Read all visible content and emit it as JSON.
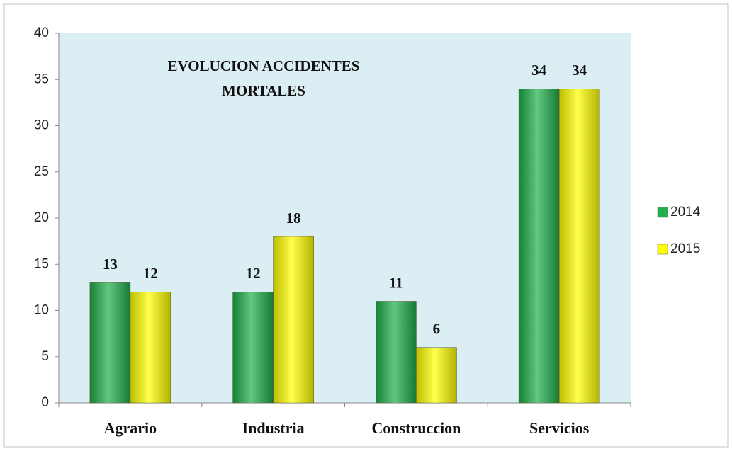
{
  "chart_data": {
    "type": "bar",
    "title": "EVOLUCION ACCIDENTES MORTALES",
    "categories": [
      "Agrario",
      "Industria",
      "Construccion",
      "Servicios"
    ],
    "series": [
      {
        "name": "2014",
        "color": "#1fb04a",
        "values": [
          13,
          12,
          11,
          34
        ]
      },
      {
        "name": "2015",
        "color": "#ffff00",
        "values": [
          12,
          18,
          6,
          34
        ]
      }
    ],
    "ylim": [
      0,
      40
    ],
    "yticks": [
      0,
      5,
      10,
      15,
      20,
      25,
      30,
      35,
      40
    ],
    "grid": false,
    "legend": "right"
  }
}
